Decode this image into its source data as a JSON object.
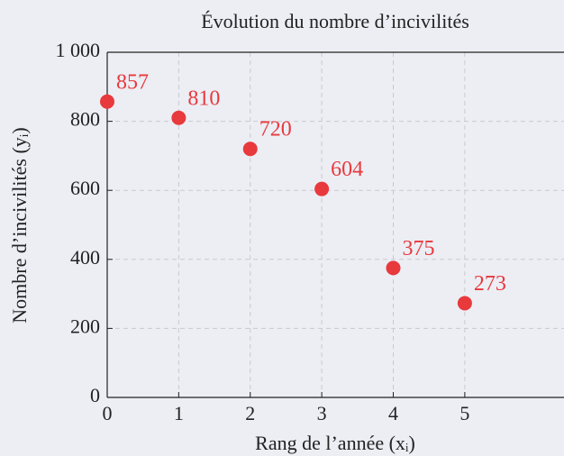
{
  "chart_data": {
    "type": "scatter",
    "title": "Évolution du nombre d’incivilités",
    "x_label": "Rang de l’année (xᵢ)",
    "y_label": "Nombre d’incivilités (yᵢ)",
    "x": [
      0,
      1,
      2,
      3,
      4,
      5
    ],
    "values": [
      857,
      810,
      720,
      604,
      375,
      273
    ],
    "color": "#e8393d",
    "xlim": [
      0,
      6.4
    ],
    "xticks": [
      0,
      1,
      2,
      3,
      4,
      5
    ],
    "ylim": [
      0,
      1000
    ],
    "yticks": [
      0,
      200,
      400,
      600,
      800,
      {
        "value": 1000,
        "label": "1 000"
      }
    ],
    "grid": true
  }
}
